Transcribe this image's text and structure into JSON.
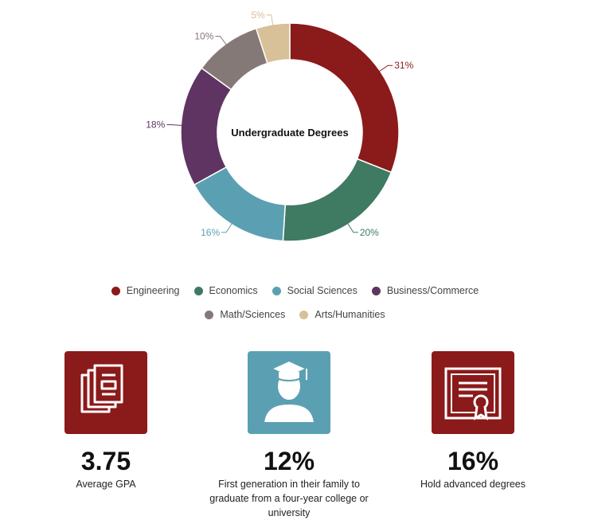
{
  "chart_data": {
    "type": "pie",
    "title": "Undergraduate Degrees",
    "categories": [
      "Engineering",
      "Economics",
      "Social Sciences",
      "Business/Commerce",
      "Math/Sciences",
      "Arts/Humanities"
    ],
    "values": [
      31,
      20,
      16,
      18,
      10,
      5
    ],
    "labels": [
      "31%",
      "20%",
      "16%",
      "18%",
      "10%",
      "5%"
    ],
    "colors": [
      "#8b1a1a",
      "#3f7a63",
      "#5ba0b2",
      "#5f3462",
      "#857978",
      "#d8c098"
    ],
    "legend_position": "bottom"
  },
  "stats": [
    {
      "icon": "books-icon",
      "value": "3.75",
      "caption": "Average GPA",
      "color": "#8b1a1a"
    },
    {
      "icon": "graduate-icon",
      "value": "12%",
      "caption": "First generation in their family to graduate from a four-year college or university",
      "color": "#5ba0b2"
    },
    {
      "icon": "certificate-icon",
      "value": "16%",
      "caption": "Hold advanced degrees",
      "color": "#8b1a1a"
    }
  ]
}
